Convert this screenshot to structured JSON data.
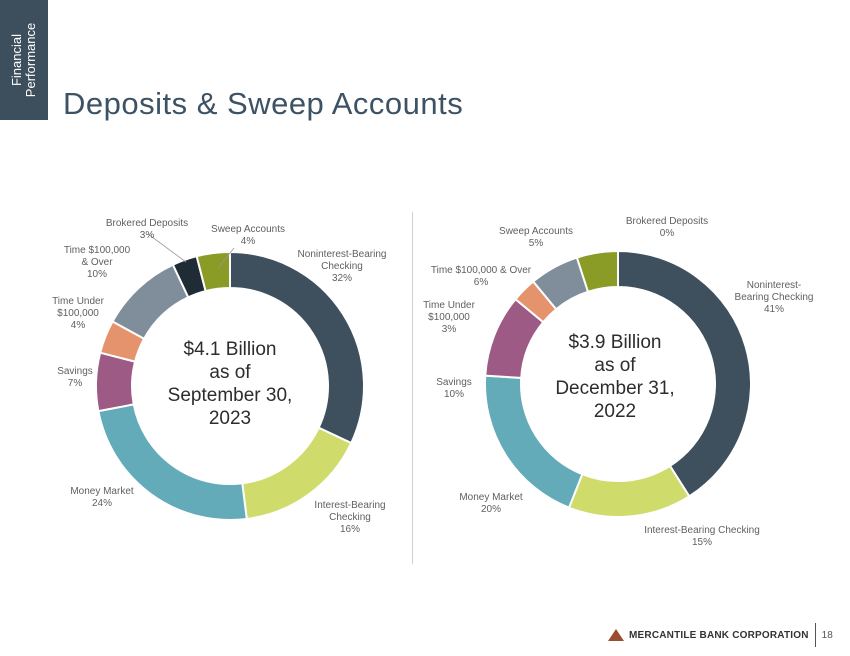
{
  "side_tab": {
    "line1": "Financial",
    "line2": "Performance"
  },
  "title": "Deposits & Sweep Accounts",
  "chart_data": [
    {
      "type": "pie",
      "center_lines": [
        "$4.1 Billion",
        "as of",
        "September 30,",
        "2023"
      ],
      "slices": [
        {
          "name": "Noninterest-Bearing Checking",
          "lines": [
            "Noninterest-Bearing",
            "Checking"
          ],
          "value_label": "32%",
          "value": 32,
          "color": "#3e4f5d"
        },
        {
          "name": "Interest-Bearing Checking",
          "lines": [
            "Interest-Bearing",
            "Checking"
          ],
          "value_label": "16%",
          "value": 16,
          "color": "#cfdb6a"
        },
        {
          "name": "Money Market",
          "lines": [
            "Money Market"
          ],
          "value_label": "24%",
          "value": 24,
          "color": "#64abb9"
        },
        {
          "name": "Savings",
          "lines": [
            "Savings"
          ],
          "value_label": "7%",
          "value": 7,
          "color": "#9c5a85"
        },
        {
          "name": "Time Under $100,000",
          "lines": [
            "Time Under",
            "$100,000"
          ],
          "value_label": "4%",
          "value": 4,
          "color": "#e5936c"
        },
        {
          "name": "Time $100,000 & Over",
          "lines": [
            "Time $100,000",
            "& Over"
          ],
          "value_label": "10%",
          "value": 10,
          "color": "#808d9a"
        },
        {
          "name": "Brokered Deposits",
          "lines": [
            "Brokered Deposits"
          ],
          "value_label": "3%",
          "value": 3,
          "color": "#1f2b35"
        },
        {
          "name": "Sweep Accounts",
          "lines": [
            "Sweep Accounts"
          ],
          "value_label": "4%",
          "value": 4,
          "color": "#8a9b26"
        }
      ]
    },
    {
      "type": "pie",
      "center_lines": [
        "$3.9 Billion",
        "as of",
        "December 31,",
        "2022"
      ],
      "slices": [
        {
          "name": "Noninterest-Bearing Checking",
          "lines": [
            "Noninterest-",
            "Bearing Checking"
          ],
          "value_label": "41%",
          "value": 41,
          "color": "#3e4f5d"
        },
        {
          "name": "Interest-Bearing Checking",
          "lines": [
            "Interest-Bearing Checking"
          ],
          "value_label": "15%",
          "value": 15,
          "color": "#cfdb6a"
        },
        {
          "name": "Money Market",
          "lines": [
            "Money Market"
          ],
          "value_label": "20%",
          "value": 20,
          "color": "#64abb9"
        },
        {
          "name": "Savings",
          "lines": [
            "Savings"
          ],
          "value_label": "10%",
          "value": 10,
          "color": "#9c5a85"
        },
        {
          "name": "Time Under $100,000",
          "lines": [
            "Time Under",
            "$100,000"
          ],
          "value_label": "3%",
          "value": 3,
          "color": "#e5936c"
        },
        {
          "name": "Time $100,000 & Over",
          "lines": [
            "Time $100,000 & Over"
          ],
          "value_label": "6%",
          "value": 6,
          "color": "#808d9a"
        },
        {
          "name": "Sweep Accounts",
          "lines": [
            "Sweep Accounts"
          ],
          "value_label": "5%",
          "value": 5,
          "color": "#8a9b26"
        },
        {
          "name": "Brokered Deposits",
          "lines": [
            "Brokered Deposits"
          ],
          "value_label": "0%",
          "value": 0,
          "color": "#1f2b35"
        }
      ]
    }
  ],
  "footer": {
    "brand": "MERCANTILE BANK CORPORATION",
    "page_number": "18",
    "logo_color": "#9a4e2f"
  }
}
